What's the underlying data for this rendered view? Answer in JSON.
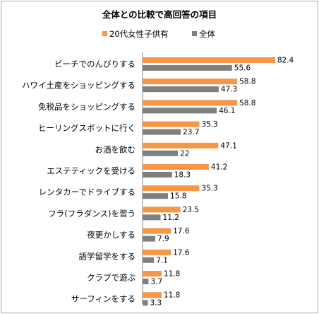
{
  "chart_data": {
    "type": "bar",
    "orientation": "horizontal",
    "title": "全体との比較で高回答の項目",
    "legend_position": "top",
    "categories": [
      "ビーチでのんびりする",
      "ハワイ土産をショッピングする",
      "免税品をショッピングする",
      "ヒーリングスポットに行く",
      "お酒を飲む",
      "エステティックを受ける",
      "レンタカーでドライブする",
      "フラ(フラダンス)を習う",
      "夜更かしする",
      "語学留学をする",
      "クラブで遊ぶ",
      "サーフィンをする"
    ],
    "series": [
      {
        "name": "20代女性子供有",
        "color": "#f79646",
        "values": [
          82.4,
          58.8,
          58.8,
          35.3,
          47.1,
          41.2,
          35.3,
          23.5,
          17.6,
          17.6,
          11.8,
          11.8
        ],
        "labels": [
          "82.4",
          "58.8",
          "58.8",
          "35.3",
          "47.1",
          "41.2",
          "35.3",
          "23.5",
          "17.6",
          "17.6",
          "11.8",
          "11.8"
        ]
      },
      {
        "name": "全体",
        "color": "#7f7f7f",
        "values": [
          55.6,
          47.3,
          46.1,
          23.7,
          22,
          18.3,
          15.8,
          11.2,
          7.9,
          7.1,
          3.7,
          3.3
        ],
        "labels": [
          "55.6",
          "47.3",
          "46.1",
          "23.7",
          "22",
          "18.3",
          "15.8",
          "11.2",
          "7.9",
          "7.1",
          "3.7",
          "3.3"
        ]
      }
    ],
    "xlim": [
      0,
      100
    ],
    "grid": false
  }
}
